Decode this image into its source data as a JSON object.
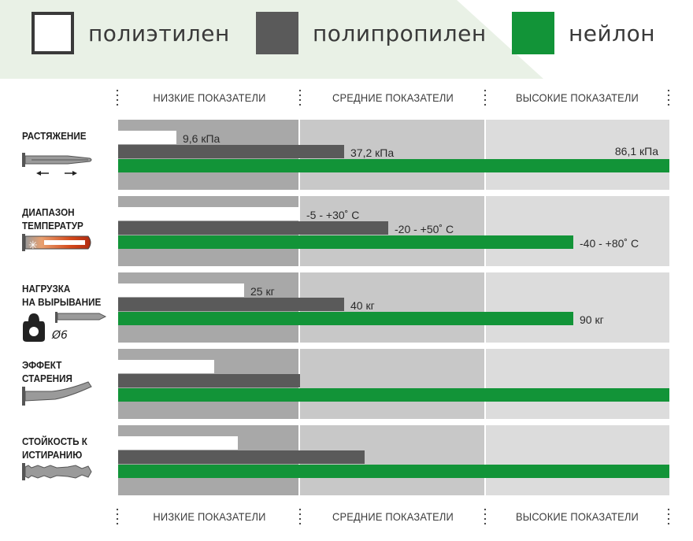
{
  "legend": [
    {
      "label": "полиэтилен",
      "color": "#ffffff"
    },
    {
      "label": "полипропилен",
      "color": "#5a5a5a"
    },
    {
      "label": "нейлон",
      "color": "#129438"
    }
  ],
  "levels": [
    "НИЗКИЕ ПОКАЗАТЕЛИ",
    "СРЕДНИЕ ПОКАЗАТЕЛИ",
    "ВЫСОКИЕ ПОКАЗАТЕЛИ"
  ],
  "colors": {
    "legend_bg": "#e9f1e6",
    "zone_low": "#a8a8a8",
    "zone_mid": "#c8c8c8",
    "zone_high": "#dcdcdc",
    "polyethylene": "#ffffff",
    "polypropylene": "#5a5a5a",
    "nylon": "#129438",
    "icon_gray": "#8a8a8a",
    "icon_hot": "#d4491b"
  },
  "chart_data": {
    "type": "bar",
    "orientation": "horizontal",
    "axis": {
      "min": 0,
      "max": 1,
      "unit": "доля шкалы",
      "zones": [
        "НИЗКИЕ ПОКАЗАТЕЛИ",
        "СРЕДНИЕ ПОКАЗАТЕЛИ",
        "ВЫСОКИЕ ПОКАЗАТЕЛИ"
      ],
      "zone_edges": [
        0,
        0.33,
        0.667,
        1
      ]
    },
    "grid": false,
    "legend_position": "top",
    "series": [
      {
        "name": "полиэтилен",
        "color": "#ffffff"
      },
      {
        "name": "полипропилен",
        "color": "#5a5a5a"
      },
      {
        "name": "нейлон",
        "color": "#129438"
      }
    ],
    "categories": [
      {
        "label_lines": [
          "РАСТЯЖЕНИЕ"
        ],
        "icon": "anchor-stretch-icon",
        "values": [
          0.106,
          0.41,
          1.0
        ],
        "labels": [
          "9,6 кПа",
          "37,2 кПа",
          "86,1 кПа"
        ]
      },
      {
        "label_lines": [
          "ДИАПАЗОН",
          "ТЕМПЕРАТУР"
        ],
        "icon": "temperature-range-icon",
        "values": [
          0.33,
          0.49,
          0.825
        ],
        "labels": [
          "-5 - +30˚ С",
          "-20 - +50˚ С",
          "-40 - +80˚ С"
        ]
      },
      {
        "label_lines": [
          "НАГРУЗКА",
          "НА ВЫРЫВАНИЕ"
        ],
        "icon": "pull-out-weight-icon",
        "icon_text": "Ø6",
        "values": [
          0.229,
          0.41,
          0.825
        ],
        "labels": [
          "25 кг",
          "40 кг",
          "90 кг"
        ]
      },
      {
        "label_lines": [
          "ЭФФЕКТ",
          "СТАРЕНИЯ"
        ],
        "icon": "aging-bent-anchor-icon",
        "values": [
          0.175,
          0.33,
          1.0
        ],
        "labels": [
          "",
          "",
          ""
        ]
      },
      {
        "label_lines": [
          "СТОЙКОСТЬ К",
          "ИСТИРАНИЮ"
        ],
        "icon": "abrasion-anchor-icon",
        "values": [
          0.217,
          0.447,
          1.0
        ],
        "labels": [
          "",
          "",
          ""
        ]
      }
    ]
  }
}
